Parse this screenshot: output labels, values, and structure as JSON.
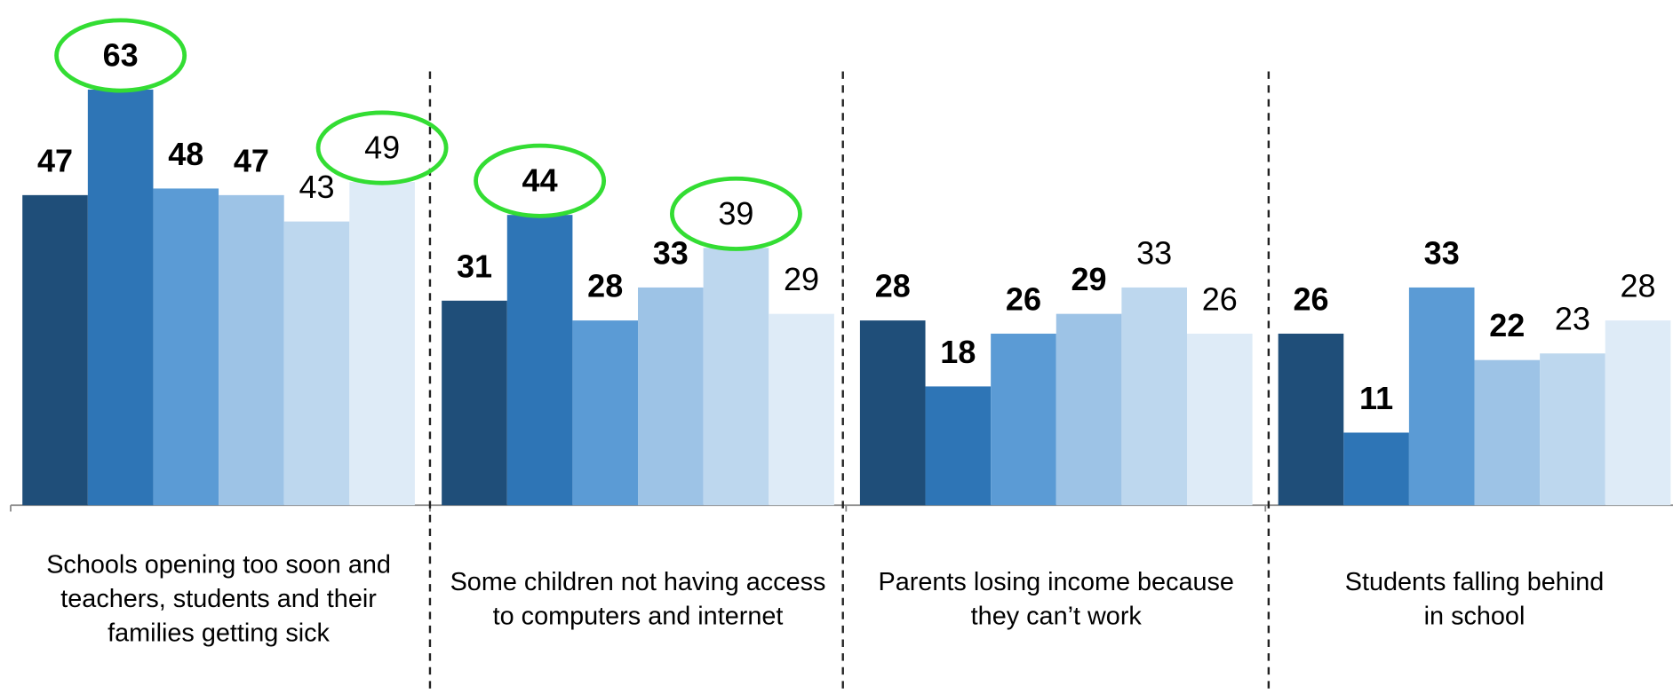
{
  "chart_data": {
    "type": "bar",
    "categories": [
      "Schools opening too soon and\nteachers, students and their\nfamilies getting sick",
      "Some children not having access\nto computers and internet",
      "Parents losing income because\nthey can’t work",
      "Students falling behind\nin school"
    ],
    "series": [
      {
        "color": "#1f4e79",
        "bold_labels": true,
        "highlight": [
          false,
          false,
          false,
          false
        ],
        "values": [
          47,
          31,
          28,
          26
        ]
      },
      {
        "color": "#2e75b6",
        "bold_labels": true,
        "highlight": [
          true,
          true,
          false,
          false
        ],
        "values": [
          63,
          44,
          18,
          11
        ]
      },
      {
        "color": "#5b9bd5",
        "bold_labels": true,
        "highlight": [
          false,
          false,
          false,
          false
        ],
        "values": [
          48,
          28,
          26,
          33
        ]
      },
      {
        "color": "#9dc3e6",
        "bold_labels": true,
        "highlight": [
          false,
          false,
          false,
          false
        ],
        "values": [
          47,
          33,
          29,
          22
        ]
      },
      {
        "color": "#bdd7ee",
        "bold_labels": false,
        "highlight": [
          false,
          true,
          false,
          false
        ],
        "values": [
          43,
          39,
          33,
          23
        ]
      },
      {
        "color": "#deebf7",
        "bold_labels": false,
        "highlight": [
          true,
          false,
          false,
          false
        ],
        "values": [
          49,
          29,
          26,
          28
        ]
      }
    ],
    "ylim": [
      0,
      76.5
    ],
    "highlight_color": "#33dd33",
    "separators": true
  }
}
